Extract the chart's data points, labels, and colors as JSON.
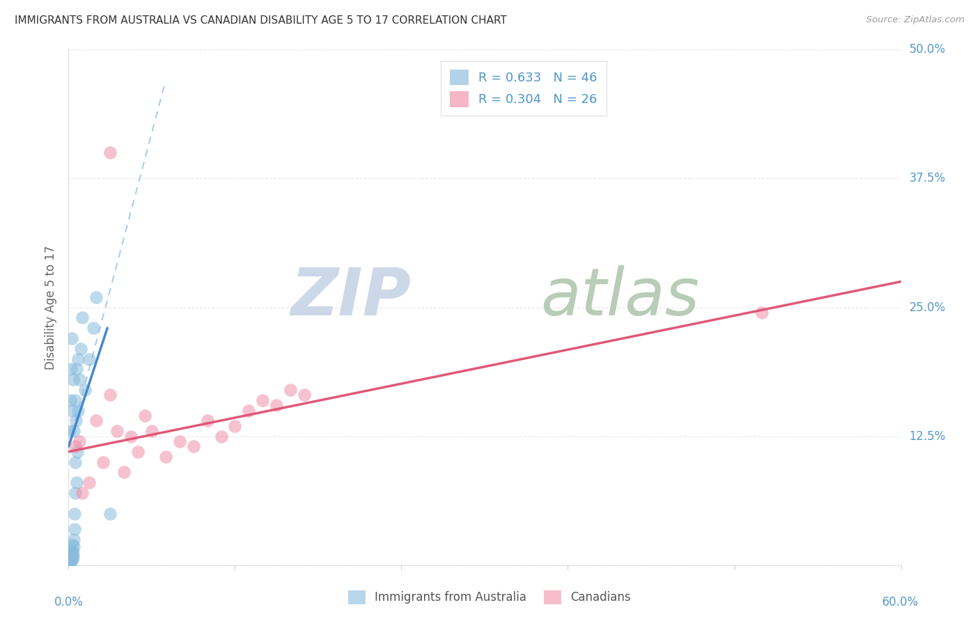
{
  "title": "IMMIGRANTS FROM AUSTRALIA VS CANADIAN DISABILITY AGE 5 TO 17 CORRELATION CHART",
  "source": "Source: ZipAtlas.com",
  "ylabel": "Disability Age 5 to 17",
  "xlim": [
    0.0,
    60.0
  ],
  "ylim": [
    0.0,
    50.0
  ],
  "blue_scatter_color": "#88bbdd",
  "pink_scatter_color": "#f090a8",
  "blue_line_color": "#4488cc",
  "pink_line_color": "#e05878",
  "blue_dash_color": "#aaccee",
  "axis_label_color": "#5599cc",
  "grid_color": "#e8e8e8",
  "blue_x": [
    0.05,
    0.08,
    0.1,
    0.12,
    0.15,
    0.18,
    0.2,
    0.22,
    0.25,
    0.28,
    0.3,
    0.32,
    0.35,
    0.38,
    0.4,
    0.42,
    0.45,
    0.48,
    0.5,
    0.55,
    0.6,
    0.65,
    0.7,
    0.8,
    0.9,
    1.0,
    1.2,
    1.5,
    1.8,
    2.0,
    0.1,
    0.15,
    0.2,
    0.25,
    0.3,
    0.35,
    0.4,
    0.5,
    0.6,
    0.7,
    0.05,
    0.08,
    0.12,
    0.18,
    0.25,
    3.0
  ],
  "blue_y": [
    0.3,
    0.5,
    0.8,
    1.0,
    1.2,
    0.4,
    0.6,
    0.9,
    1.5,
    2.0,
    0.5,
    0.8,
    1.2,
    1.8,
    2.5,
    3.5,
    5.0,
    7.0,
    10.0,
    14.0,
    8.0,
    11.0,
    15.0,
    18.0,
    21.0,
    24.0,
    17.0,
    20.0,
    23.0,
    26.0,
    13.0,
    16.0,
    19.0,
    22.0,
    15.0,
    18.0,
    13.0,
    16.0,
    19.0,
    20.0,
    0.2,
    0.3,
    0.5,
    0.8,
    1.2,
    5.0
  ],
  "pink_x": [
    0.5,
    0.8,
    1.0,
    1.5,
    2.0,
    2.5,
    3.0,
    3.5,
    4.0,
    4.5,
    5.0,
    5.5,
    6.0,
    7.0,
    8.0,
    9.0,
    10.0,
    11.0,
    12.0,
    13.0,
    14.0,
    15.0,
    16.0,
    17.0,
    50.0,
    3.0
  ],
  "pink_y": [
    11.5,
    12.0,
    7.0,
    8.0,
    14.0,
    10.0,
    16.5,
    13.0,
    9.0,
    12.5,
    11.0,
    14.5,
    13.0,
    10.5,
    12.0,
    11.5,
    14.0,
    12.5,
    13.5,
    15.0,
    16.0,
    15.5,
    17.0,
    16.5,
    24.5,
    40.0
  ],
  "blue_line_x0": 0.0,
  "blue_line_x1": 2.8,
  "blue_line_y0": 11.5,
  "blue_line_y1": 23.0,
  "blue_dash_x0": 0.0,
  "blue_dash_x1": 7.0,
  "blue_dash_y0": 11.5,
  "blue_dash_y1": 47.0,
  "pink_line_x0": 0.0,
  "pink_line_x1": 60.0,
  "pink_line_y0": 11.0,
  "pink_line_y1": 27.5,
  "watermark_zip_color": "#ccd8e8",
  "watermark_atlas_color": "#b8ccb8"
}
